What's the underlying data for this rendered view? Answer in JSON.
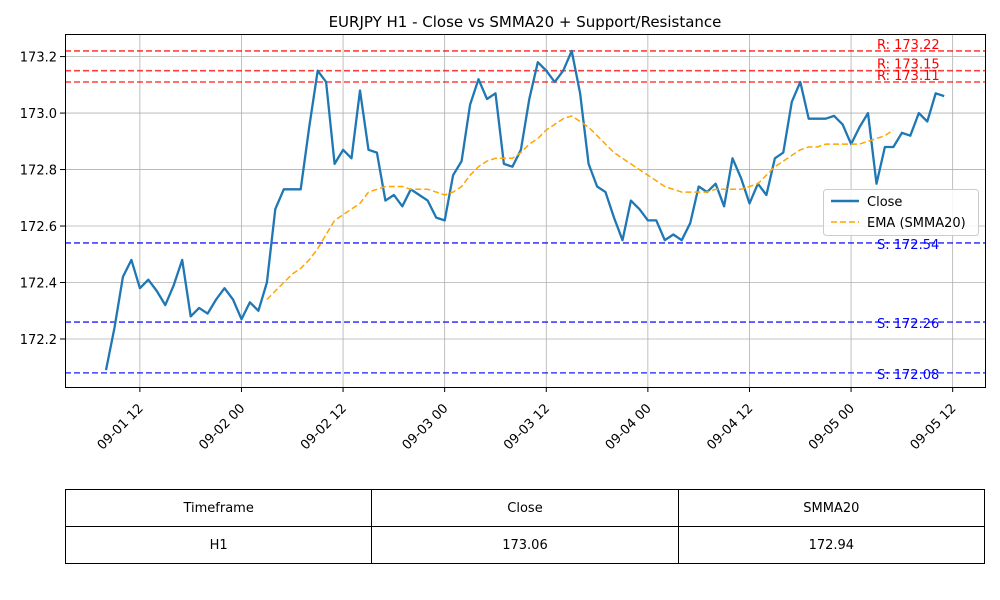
{
  "chart_data": {
    "type": "line",
    "title": "EURJPY H1 - Close vs SMMA20 + Support/Resistance",
    "xlabel": "",
    "ylabel": "",
    "x_ticks": [
      "09-01 12",
      "09-02 00",
      "09-02 12",
      "09-03 00",
      "09-03 12",
      "09-04 00",
      "09-04 12",
      "09-05 00",
      "09-05 12"
    ],
    "y_ticks": [
      "172.2",
      "172.4",
      "172.6",
      "172.8",
      "173.0",
      "173.2"
    ],
    "ylim": [
      172.03,
      173.28
    ],
    "grid": true,
    "legend_position": "center-right",
    "series": [
      {
        "name": "Close",
        "color": "#1f77b4",
        "style": "solid",
        "x_start": "2024-09-01 08:00",
        "x_step_hours": 1,
        "values": [
          172.09,
          172.24,
          172.42,
          172.48,
          172.38,
          172.41,
          172.37,
          172.32,
          172.39,
          172.48,
          172.28,
          172.31,
          172.29,
          172.34,
          172.38,
          172.34,
          172.27,
          172.33,
          172.3,
          172.4,
          172.66,
          172.73,
          172.73,
          172.73,
          172.95,
          173.15,
          173.11,
          172.82,
          172.87,
          172.84,
          173.08,
          172.87,
          172.86,
          172.69,
          172.71,
          172.67,
          172.73,
          172.71,
          172.69,
          172.63,
          172.62,
          172.78,
          172.83,
          173.03,
          173.12,
          173.05,
          173.07,
          172.82,
          172.81,
          172.87,
          173.05,
          173.18,
          173.15,
          173.11,
          173.15,
          173.22,
          173.07,
          172.82,
          172.74,
          172.72,
          172.63,
          172.55,
          172.69,
          172.66,
          172.62,
          172.62,
          172.55,
          172.57,
          172.55,
          172.61,
          172.74,
          172.72,
          172.75,
          172.67,
          172.84,
          172.77,
          172.68,
          172.75,
          172.71,
          172.84,
          172.86,
          173.04,
          173.11,
          172.98,
          172.98,
          172.98,
          172.99,
          172.96,
          172.89,
          172.95,
          173.0,
          172.75,
          172.88,
          172.88,
          172.93,
          172.92,
          173.0,
          172.97,
          173.07,
          173.06
        ]
      },
      {
        "name": "EMA (SMMA20)",
        "color": "#ffa500",
        "style": "dashed",
        "x_start": "2024-09-02 03:00",
        "x_step_hours": 1,
        "values": [
          172.34,
          172.37,
          172.4,
          172.43,
          172.45,
          172.48,
          172.52,
          172.57,
          172.62,
          172.64,
          172.66,
          172.68,
          172.72,
          172.73,
          172.74,
          172.74,
          172.74,
          172.73,
          172.73,
          172.73,
          172.72,
          172.71,
          172.72,
          172.74,
          172.78,
          172.81,
          172.83,
          172.84,
          172.84,
          172.84,
          172.86,
          172.89,
          172.91,
          172.94,
          172.96,
          172.98,
          172.99,
          172.97,
          172.95,
          172.92,
          172.89,
          172.86,
          172.84,
          172.82,
          172.8,
          172.78,
          172.76,
          172.74,
          172.73,
          172.72,
          172.72,
          172.72,
          172.72,
          172.73,
          172.73,
          172.73,
          172.73,
          172.74,
          172.75,
          172.78,
          172.81,
          172.83,
          172.85,
          172.87,
          172.88,
          172.88,
          172.89,
          172.89,
          172.89,
          172.89,
          172.89,
          172.9,
          172.91,
          172.92,
          172.94
        ]
      }
    ],
    "resistance": [
      {
        "label": "R: 173.22",
        "value": 173.22
      },
      {
        "label": "R: 173.15",
        "value": 173.15
      },
      {
        "label": "R: 173.11",
        "value": 173.11
      }
    ],
    "support": [
      {
        "label": "S: 172.54",
        "value": 172.54
      },
      {
        "label": "S: 172.26",
        "value": 172.26
      },
      {
        "label": "S: 172.08",
        "value": 172.08
      }
    ],
    "colors": {
      "resistance": "#ff0000",
      "support": "#0000ff",
      "close": "#1f77b4",
      "smma": "#ffa500"
    }
  },
  "table": {
    "headers": [
      "Timeframe",
      "Close",
      "SMMA20"
    ],
    "rows": [
      [
        "H1",
        "173.06",
        "172.94"
      ]
    ]
  }
}
